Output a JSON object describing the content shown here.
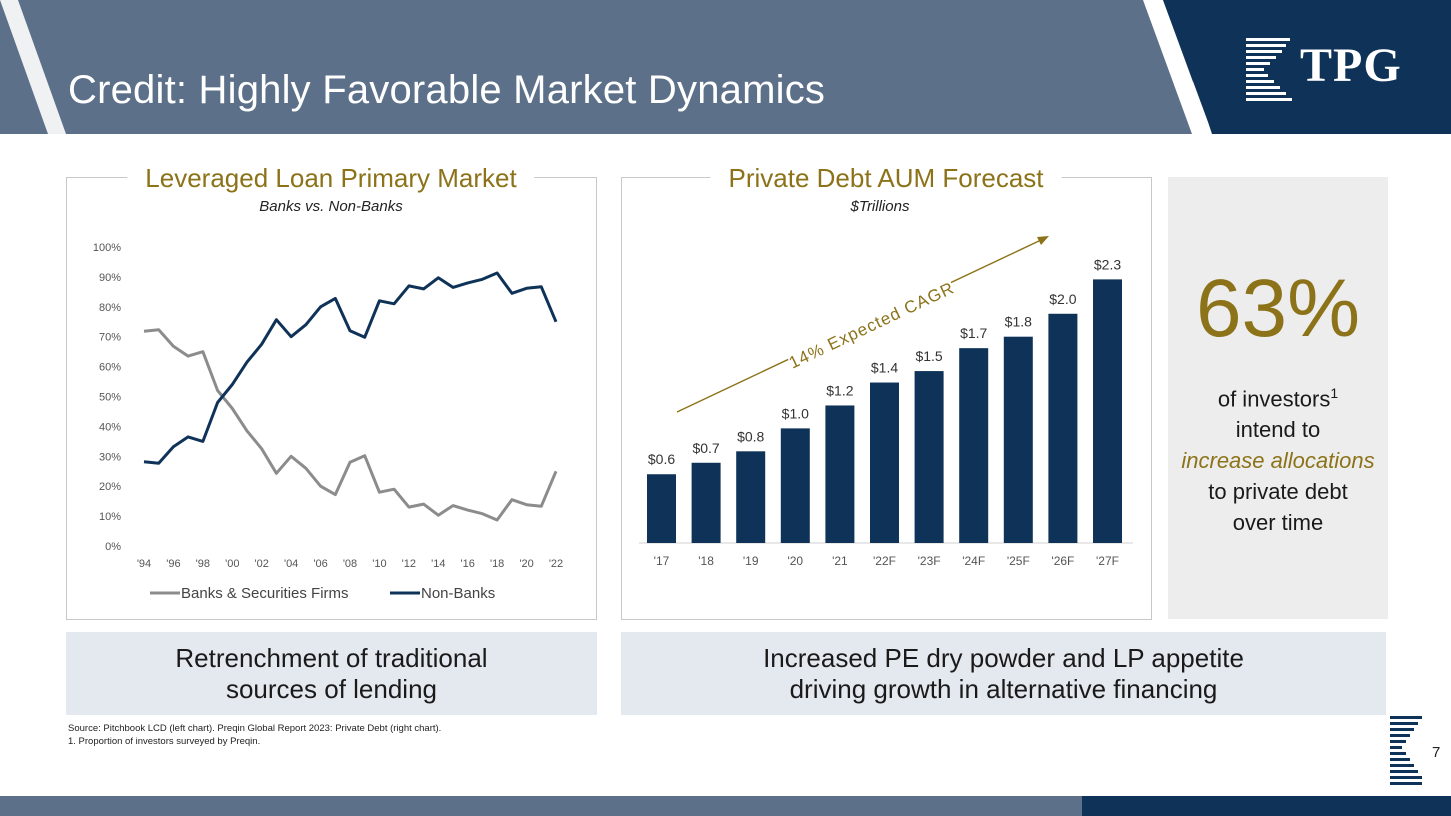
{
  "header": {
    "title": "Credit: Highly Favorable Market Dynamics",
    "logo_text": "TPG"
  },
  "colors": {
    "header_bg": "#5c7089",
    "logo_bg": "#0f3358",
    "gold": "#8c7319",
    "bar_navy": "#0f3358",
    "banks_gray": "#8c8c8c",
    "banner_bg": "#e4e8ef"
  },
  "left_chart": {
    "title": "Leveraged Loan Primary Market",
    "subtitle": "Banks vs. Non-Banks"
  },
  "right_chart": {
    "title": "Private Debt AUM Forecast",
    "subtitle": "$Trillions",
    "cagr_label": "14% Expected CAGR"
  },
  "chart_data": [
    {
      "type": "line",
      "title": "Leveraged Loan Primary Market",
      "subtitle": "Banks vs. Non-Banks",
      "ylim": [
        0,
        100
      ],
      "y_ticks": [
        "0%",
        "10%",
        "20%",
        "30%",
        "40%",
        "50%",
        "60%",
        "70%",
        "80%",
        "90%",
        "100%"
      ],
      "x_tick_labels": [
        "'94",
        "'96",
        "'98",
        "'00",
        "'02",
        "'04",
        "'06",
        "'08",
        "'10",
        "'12",
        "'14",
        "'16",
        "'18",
        "'20",
        "'22"
      ],
      "x_points": [
        1994,
        1995,
        1996,
        1997,
        1998,
        1999,
        2000,
        2001,
        2002,
        2003,
        2004,
        2005,
        2006,
        2007,
        2008,
        2009,
        2010,
        2011,
        2012,
        2013,
        2014,
        2015,
        2016,
        2017,
        2018,
        2019,
        2020,
        2021,
        2022
      ],
      "series": [
        {
          "name": "Banks & Securities Firms",
          "color": "#8c8c8c",
          "values": [
            71.8,
            72.3,
            66.8,
            63.5,
            65.0,
            52.0,
            46.0,
            38.5,
            32.5,
            24.3,
            30.0,
            26.0,
            20.0,
            17.2,
            28.0,
            30.2,
            18.0,
            19.0,
            13.0,
            14.0,
            10.3,
            13.5,
            12.0,
            10.8,
            8.7,
            15.5,
            13.8,
            13.3,
            25.0
          ]
        },
        {
          "name": "Non-Banks",
          "color": "#0f3358",
          "values": [
            28.2,
            27.7,
            33.2,
            36.5,
            35.0,
            48.0,
            54.0,
            61.5,
            67.5,
            75.7,
            70.0,
            74.0,
            80.0,
            82.8,
            72.0,
            69.8,
            82.0,
            81.0,
            87.0,
            86.0,
            89.7,
            86.5,
            88.0,
            89.2,
            91.3,
            84.5,
            86.2,
            86.7,
            75.0
          ]
        }
      ],
      "legend": [
        "Banks & Securities Firms",
        "Non-Banks"
      ],
      "legend_position": "bottom"
    },
    {
      "type": "bar",
      "title": "Private Debt AUM Forecast",
      "subtitle": "$Trillions",
      "categories": [
        "'17",
        "'18",
        "'19",
        "'20",
        "'21",
        "'22F",
        "'23F",
        "'24F",
        "'25F",
        "'26F",
        "'27F"
      ],
      "values": [
        0.6,
        0.7,
        0.8,
        1.0,
        1.2,
        1.4,
        1.5,
        1.7,
        1.8,
        2.0,
        2.3
      ],
      "data_labels": [
        "$0.6",
        "$0.7",
        "$0.8",
        "$1.0",
        "$1.2",
        "$1.4",
        "$1.5",
        "$1.7",
        "$1.8",
        "$2.0",
        "$2.3"
      ],
      "ylim": [
        0,
        2.6
      ],
      "annotation": "14% Expected CAGR",
      "color": "#0f3358"
    }
  ],
  "callout": {
    "value": "63%",
    "line1": "of investors",
    "sup": "1",
    "line2": "intend to",
    "highlight": "increase allocations",
    "line3": "to private debt",
    "line4": "over time"
  },
  "banners": {
    "left_line1": "Retrenchment of traditional",
    "left_line2": "sources of lending",
    "right_line1": "Increased PE dry powder and LP appetite",
    "right_line2": "driving growth in alternative financing"
  },
  "footnotes": {
    "source": "Source: Pitchbook LCD (left chart). Preqin Global Report 2023: Private Debt (right chart).",
    "note1": "1. Proportion of investors surveyed by Preqin."
  },
  "page_number": "7"
}
